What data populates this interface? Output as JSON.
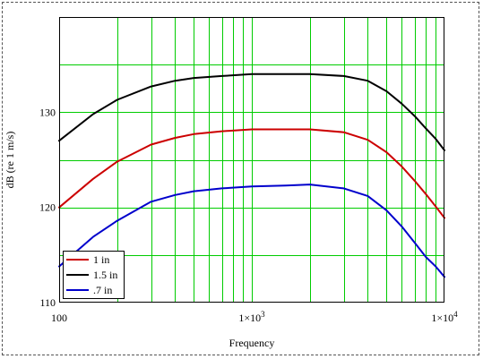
{
  "chart_data": {
    "type": "line",
    "xlabel": "Frequency",
    "ylabel": "dB (re 1 m/s)",
    "x_scale": "log",
    "xlim": [
      100,
      10000
    ],
    "ylim": [
      110,
      140
    ],
    "grid": true,
    "grid_color": "#00cc00",
    "x_ticks": [
      {
        "value": 100,
        "label": "100"
      },
      {
        "value": 1000,
        "label": "1×10",
        "sup": "3"
      },
      {
        "value": 10000,
        "label": "1×10",
        "sup": "4"
      }
    ],
    "y_ticks": [
      {
        "value": 110,
        "label": "110"
      },
      {
        "value": 120,
        "label": "120"
      },
      {
        "value": 130,
        "label": "130"
      }
    ],
    "legend_position": "bottom-left",
    "series": [
      {
        "name": "1 in",
        "color": "#cc0000",
        "x": [
          100,
          150,
          200,
          300,
          400,
          500,
          700,
          1000,
          1500,
          2000,
          3000,
          4000,
          5000,
          6000,
          7000,
          8000,
          9000,
          10000
        ],
        "y": [
          120.0,
          123.0,
          124.8,
          126.6,
          127.3,
          127.7,
          128.0,
          128.2,
          128.2,
          128.2,
          127.9,
          127.1,
          125.8,
          124.3,
          122.8,
          121.4,
          120.1,
          118.9
        ]
      },
      {
        "name": "1.5 in",
        "color": "#000000",
        "x": [
          100,
          150,
          200,
          300,
          400,
          500,
          700,
          1000,
          1500,
          2000,
          3000,
          4000,
          5000,
          6000,
          7000,
          8000,
          9000,
          10000
        ],
        "y": [
          127.0,
          129.8,
          131.3,
          132.7,
          133.3,
          133.6,
          133.8,
          134.0,
          134.0,
          134.0,
          133.8,
          133.3,
          132.2,
          130.9,
          129.6,
          128.3,
          127.2,
          126.0
        ]
      },
      {
        "name": ".7 in",
        "color": "#0000cc",
        "x": [
          100,
          150,
          200,
          300,
          400,
          500,
          700,
          1000,
          1500,
          2000,
          3000,
          4000,
          5000,
          6000,
          7000,
          8000,
          9000,
          10000
        ],
        "y": [
          113.8,
          116.9,
          118.6,
          120.6,
          121.3,
          121.7,
          122.0,
          122.2,
          122.3,
          122.4,
          122.0,
          121.2,
          119.7,
          118.0,
          116.3,
          114.8,
          113.8,
          112.7
        ]
      }
    ]
  }
}
